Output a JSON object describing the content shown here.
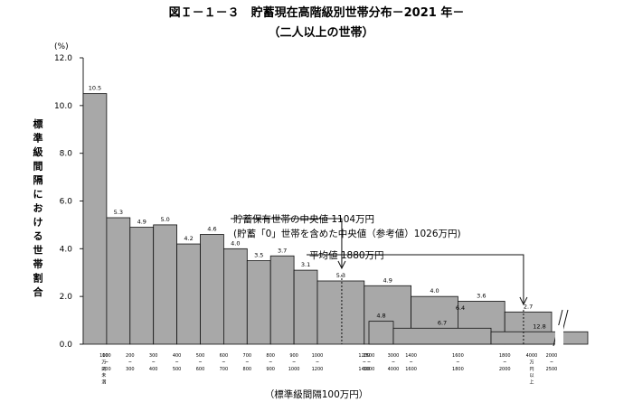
{
  "title": "図Ｉ－１－３　貯蓄現在高階級別世帯分布－2021 年－",
  "subtitle": "（二人以上の世帯）",
  "chart_data": {
    "type": "bar",
    "y_unit": "(%)",
    "ylabel": "標準級間隔における世帯割合",
    "xlabel": "（標準級間隔100万円）",
    "ylim": [
      0,
      12
    ],
    "yticks": [
      "0.0",
      "2.0",
      "4.0",
      "6.0",
      "8.0",
      "10.0",
      "12.0"
    ],
    "grid": false,
    "bins": [
      {
        "from": 0,
        "to": 100,
        "value": 10.5,
        "label": "10.5"
      },
      {
        "from": 100,
        "to": 200,
        "value": 5.3,
        "label": "5.3"
      },
      {
        "from": 200,
        "to": 300,
        "value": 4.9,
        "label": "4.9"
      },
      {
        "from": 300,
        "to": 400,
        "value": 5.0,
        "label": "5.0"
      },
      {
        "from": 400,
        "to": 500,
        "value": 4.2,
        "label": "4.2"
      },
      {
        "from": 500,
        "to": 600,
        "value": 4.6,
        "label": "4.6"
      },
      {
        "from": 600,
        "to": 700,
        "value": 4.0,
        "label": "4.0"
      },
      {
        "from": 700,
        "to": 800,
        "value": 3.5,
        "label": "3.5"
      },
      {
        "from": 800,
        "to": 900,
        "value": 3.7,
        "label": "3.7"
      },
      {
        "from": 900,
        "to": 1000,
        "value": 3.1,
        "label": "3.1"
      },
      {
        "from": 1000,
        "to": 1200,
        "value": 2.65,
        "label": "5.3"
      },
      {
        "from": 1200,
        "to": 1400,
        "value": 2.45,
        "label": "4.9"
      },
      {
        "from": 1400,
        "to": 1600,
        "value": 2.0,
        "label": "4.0"
      },
      {
        "from": 1600,
        "to": 1800,
        "value": 1.8,
        "label": "3.6"
      },
      {
        "from": 1800,
        "to": 2000,
        "value": 1.35,
        "label": "2.7"
      },
      {
        "from": 2000,
        "to": 2500,
        "value": 1.28,
        "label": "6.4"
      },
      {
        "from": 2500,
        "to": 3000,
        "value": 0.96,
        "label": "4.8"
      },
      {
        "from": 3000,
        "to": 4000,
        "value": 0.67,
        "label": "6.7"
      },
      {
        "from": 4000,
        "to": 5000,
        "value": 0.52,
        "label": "12.8"
      }
    ],
    "x_tick_labels": [
      [
        "100",
        "万",
        "円",
        "未",
        "満"
      ],
      [
        "100",
        "~",
        "200"
      ],
      [
        "200",
        "~",
        "300"
      ],
      [
        "300",
        "~",
        "400"
      ],
      [
        "400",
        "~",
        "500"
      ],
      [
        "500",
        "~",
        "600"
      ],
      [
        "600",
        "~",
        "700"
      ],
      [
        "700",
        "~",
        "800"
      ],
      [
        "800",
        "~",
        "900"
      ],
      [
        "900",
        "~",
        "1000"
      ],
      [
        "1000",
        "~",
        "1200"
      ],
      [
        "1200",
        "~",
        "1400"
      ],
      [
        "1400",
        "~",
        "1600"
      ],
      [
        "1600",
        "~",
        "1800"
      ],
      [
        "1800",
        "~",
        "2000"
      ],
      [
        "2000",
        "~",
        "2500"
      ],
      [
        "2500",
        "~",
        "3000"
      ],
      [
        "3000",
        "~",
        "4000"
      ],
      [
        "4000",
        "万",
        "円",
        "以",
        "上"
      ]
    ],
    "annotations": [
      {
        "text": "貯蓄保有世帯の中央値 1104万円",
        "at": 1104
      },
      {
        "text": "(貯蓄「0」世帯を含めた中央値（参考値）1026万円)",
        "at": 1104
      },
      {
        "text": "平均値 1880万円",
        "at": 1880
      }
    ]
  }
}
